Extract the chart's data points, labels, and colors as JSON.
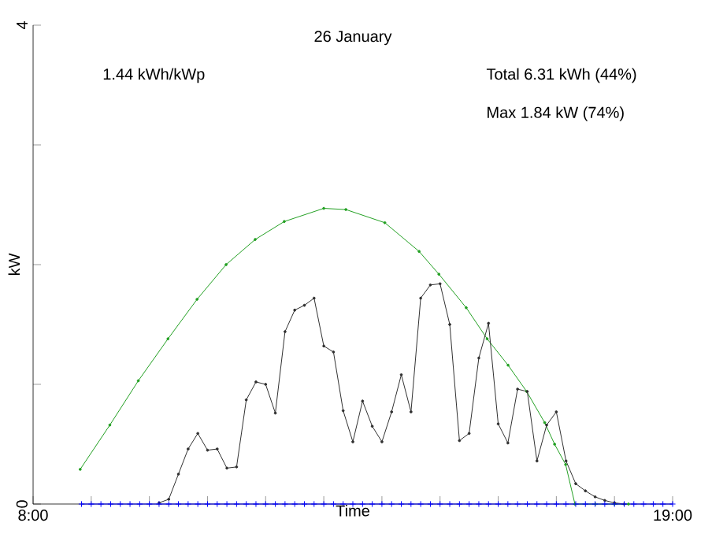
{
  "chart_data": {
    "type": "line",
    "title": "26 January",
    "xlabel": "Time",
    "ylabel": "kW",
    "annotations": [
      "1.44 kWh/kWp",
      "Total 6.31 kWh (44%)",
      "Max 1.84 kW (74%)"
    ],
    "xlim": [
      8,
      19
    ],
    "ylim": [
      0,
      4
    ],
    "xticks": [
      {
        "value": 8,
        "label": "8:00"
      },
      {
        "value": 9,
        "label": null
      },
      {
        "value": 10,
        "label": null
      },
      {
        "value": 11,
        "label": null
      },
      {
        "value": 12,
        "label": null
      },
      {
        "value": 13,
        "label": null
      },
      {
        "value": 14,
        "label": null
      },
      {
        "value": 15,
        "label": null
      },
      {
        "value": 16,
        "label": null
      },
      {
        "value": 17,
        "label": null
      },
      {
        "value": 18,
        "label": null
      },
      {
        "value": 19,
        "label": "19:00"
      }
    ],
    "yticks": [
      0,
      {
        "value": 1,
        "label": null
      },
      {
        "value": 2,
        "label": null
      },
      {
        "value": 3,
        "label": null
      },
      4
    ],
    "series": [
      {
        "color": "#22a022",
        "marker": "circle",
        "x": [
          8.81,
          9.32,
          9.81,
          10.32,
          10.82,
          11.32,
          11.82,
          12.32,
          13.0,
          13.38,
          14.05,
          14.64,
          14.98,
          15.45,
          15.81,
          16.17,
          16.49,
          16.8,
          16.97,
          17.16,
          17.32,
          17.67,
          18.0,
          18.24
        ],
        "values": [
          0.29,
          0.66,
          1.03,
          1.38,
          1.71,
          2.0,
          2.21,
          2.36,
          2.47,
          2.46,
          2.35,
          2.11,
          1.92,
          1.64,
          1.38,
          1.16,
          0.94,
          0.68,
          0.5,
          0.33,
          0,
          0,
          0,
          0
        ]
      },
      {
        "color": "#303030",
        "marker": "circle",
        "x": [
          10.1667,
          10.3333,
          10.5,
          10.6667,
          10.8333,
          11,
          11.1667,
          11.3333,
          11.5,
          11.6667,
          11.8333,
          12,
          12.1667,
          12.3333,
          12.5,
          12.6667,
          12.8333,
          13,
          13.1667,
          13.3333,
          13.5,
          13.6667,
          13.8333,
          14,
          14.1667,
          14.3333,
          14.5,
          14.6667,
          14.8333,
          15,
          15.1667,
          15.3333,
          15.5,
          15.6667,
          15.8333,
          16,
          16.1667,
          16.3333,
          16.5,
          16.6667,
          16.8333,
          17,
          17.1667,
          17.3333,
          17.5,
          17.6667,
          17.8333,
          18,
          18.1667
        ],
        "values": [
          0.01,
          0.04,
          0.25,
          0.46,
          0.59,
          0.45,
          0.46,
          0.3,
          0.31,
          0.87,
          1.02,
          1.0,
          0.76,
          1.44,
          1.62,
          1.66,
          1.72,
          1.32,
          1.27,
          0.78,
          0.52,
          0.86,
          0.65,
          0.52,
          0.77,
          1.08,
          0.77,
          1.72,
          1.83,
          1.84,
          1.5,
          0.53,
          0.59,
          1.22,
          1.51,
          0.67,
          0.51,
          0.96,
          0.94,
          0.36,
          0.66,
          0.77,
          0.36,
          0.17,
          0.11,
          0.06,
          0.03,
          0.01,
          0
        ]
      },
      {
        "color": "#0000ff",
        "marker": "cross",
        "x": [
          8.8333,
          9,
          9.1667,
          9.3333,
          9.5,
          9.6667,
          9.8333,
          10,
          10.1667,
          10.3333,
          10.5,
          10.6667,
          10.8333,
          11,
          11.1667,
          11.3333,
          11.5,
          11.6667,
          11.8333,
          12,
          12.1667,
          12.3333,
          12.5,
          12.6667,
          12.8333,
          13,
          13.1667,
          13.3333,
          13.5,
          13.6667,
          13.8333,
          14,
          14.1667,
          14.3333,
          14.5,
          14.6667,
          14.8333,
          15,
          15.1667,
          15.3333,
          15.5,
          15.6667,
          15.8333,
          16,
          16.1667,
          16.3333,
          16.5,
          16.6667,
          16.8333,
          17,
          17.1667,
          17.3333,
          17.5,
          17.6667,
          17.8333,
          18,
          18.1667,
          18.3333,
          18.5,
          18.6667,
          18.8333,
          19
        ],
        "values": [
          0,
          0,
          0,
          0,
          0,
          0,
          0,
          0,
          0,
          0,
          0,
          0,
          0,
          0,
          0,
          0,
          0,
          0,
          0,
          0,
          0,
          0,
          0,
          0,
          0,
          0,
          0,
          0,
          0,
          0,
          0,
          0,
          0,
          0,
          0,
          0,
          0,
          0,
          0,
          0,
          0,
          0,
          0,
          0,
          0,
          0,
          0,
          0,
          0,
          0,
          0,
          0,
          0,
          0,
          0,
          0,
          0,
          0,
          0,
          0,
          0,
          0
        ]
      }
    ]
  }
}
